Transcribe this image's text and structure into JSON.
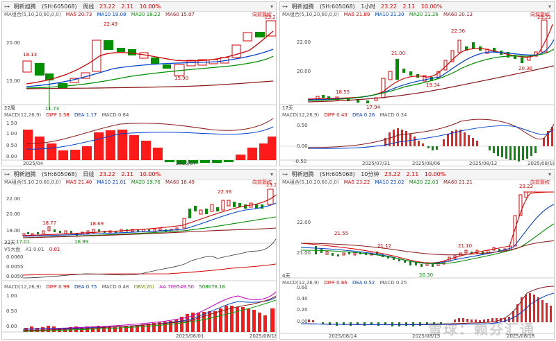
{
  "panes": [
    {
      "title": {
        "name": "明新旭腾",
        "code": "(SH:605068)",
        "period": "周线",
        "price": "23.22",
        "change": "2.11",
        "pct": "10.00%"
      },
      "ma": {
        "label": "MA组合(5,10,20,60,0,0)",
        "ma5": "MA5 20.73",
        "ma10": "MA10 19.08",
        "ma20": "MA20 18.22",
        "ma60": "MA60 15.07"
      },
      "fuquan": "向前复权",
      "yaxis": [
        "20.00",
        "15.00"
      ],
      "annos": [
        "18.13",
        "22.49",
        "15.90",
        "23.22",
        "11.73"
      ],
      "corner": "22周",
      "sub": {
        "label": "MACD(12,26,9)",
        "diff": "DIFF 1.58",
        "dea": "DEA 1.17",
        "macd": "MACD 0.84"
      },
      "sub_yaxis": [
        "1.50",
        "1.00",
        "0.50",
        "0.00"
      ],
      "dates": [
        "2025/04",
        "2025/07"
      ]
    },
    {
      "title": {
        "name": "明新旭腾",
        "code": "(SH:605068)",
        "period": "1小时",
        "price": "23.22",
        "change": "2.11",
        "pct": "10.00%"
      },
      "ma": {
        "label": "MA组合(5,10,20,60,0,0)",
        "ma5": "MA5 21.89",
        "ma10": "MA10 21.30",
        "ma20": "MA20 21.26",
        "ma60": "MA60 20.13"
      },
      "fuquan": "向前复权",
      "yaxis": [
        "22.00",
        "20.00"
      ],
      "annos": [
        "21.00",
        "22.36",
        "18.55",
        "19.34",
        "17.94",
        "20.30",
        "23.22"
      ],
      "corner": "17天",
      "sub": {
        "label": "MACD(12,26,9)",
        "diff": "DIFF 0.43",
        "dea": "DEA 0.26",
        "macd": "MACD 0.34"
      },
      "sub_yaxis": [
        "0.50",
        "0.00",
        "-0.50"
      ],
      "dates": [
        "2025/07/31",
        "2025/08/06",
        "2025/08/12",
        "2025/08/18"
      ]
    },
    {
      "title": {
        "name": "明新旭腾",
        "code": "(SH:605068)",
        "period": "日线",
        "price": "23.22",
        "change": "2.11",
        "pct": "10.00%"
      },
      "ma": {
        "label": "MA组合(5,10,20,60,0,0)",
        "ma5": "MA5 21.40",
        "ma10": "MA10 21.01",
        "ma20": "MA20 19.76",
        "ma60": "MA60 18.49"
      },
      "fuquan": "向前复权",
      "yaxis": [
        "22.00",
        "20.00",
        "18.00"
      ],
      "annos": [
        "18.77",
        "18.69",
        "22.36",
        "23.22",
        "16.99",
        "17.01"
      ],
      "corner": "32天",
      "sub1": {
        "label": "V5大盘",
        "a1": "A1 0.01",
        "v": "0.01"
      },
      "sub1_yaxis": [
        "0.0060",
        "0.0055",
        "0.0050"
      ],
      "sub": {
        "label": "MACD(12,26,9)",
        "diff": "DIFF 0.99",
        "dea": "DEA 0.75",
        "macd": "MACD 0.48",
        "obv": "OBV(20)",
        "aa": "AA 709549.50",
        "bb": "508078.16"
      },
      "sub_yaxis": [
        "1.00",
        "0.50",
        "0.00"
      ],
      "dates": [
        "2025/08/01",
        "2025/08/18"
      ]
    },
    {
      "title": {
        "name": "明新旭腾",
        "code": "(SH:605068)",
        "period": "10分钟",
        "price": "23.22",
        "change": "2.11",
        "pct": "10.00%"
      },
      "ma": {
        "label": "MA组合(5,10,20,60,0,0)",
        "ma5": "MA5 23.22",
        "ma10": "MA10 23.02",
        "ma20": "MA20 22.03",
        "ma60": "MA60 21.21"
      },
      "fuquan": "向前复权",
      "yaxis": [
        "22.00",
        "21.00"
      ],
      "annos": [
        "21.55",
        "21.12",
        "21.10",
        "23.22",
        "20.30"
      ],
      "corner": "4天",
      "sub": {
        "label": "MACD(12,26,9)",
        "diff": "DIFF 0.65",
        "dea": "DEA 0.52",
        "macd": "MACD 0.25"
      },
      "sub_yaxis": [
        "0.60",
        "0.40",
        "0.20",
        "0.00"
      ],
      "dates": [
        "2025/08/14",
        "2025/08/15",
        "2025/08/18"
      ]
    }
  ],
  "watermark": "雪球：赖芬汇通"
}
